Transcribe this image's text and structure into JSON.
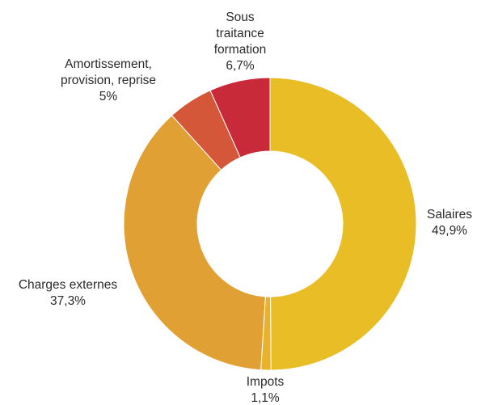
{
  "chart_data": {
    "type": "pie",
    "donut": true,
    "start_angle_deg": 0,
    "direction": "clockwise",
    "slices": [
      {
        "name": [
          "Salaires"
        ],
        "value": 49.9,
        "value_label": "49,9%",
        "color": "#E9BD25"
      },
      {
        "name": [
          "Impots"
        ],
        "value": 1.1,
        "value_label": "1,1%",
        "color": "#E8B22C"
      },
      {
        "name": [
          "Charges externes"
        ],
        "value": 37.3,
        "value_label": "37,3%",
        "color": "#E0A034"
      },
      {
        "name": [
          "Amortissement,",
          "provision, reprise"
        ],
        "value": 5.0,
        "value_label": "5%",
        "color": "#D4573A"
      },
      {
        "name": [
          "Sous",
          "traitance",
          "formation"
        ],
        "value": 6.7,
        "value_label": "6,7%",
        "color": "#C92A3A"
      }
    ]
  }
}
